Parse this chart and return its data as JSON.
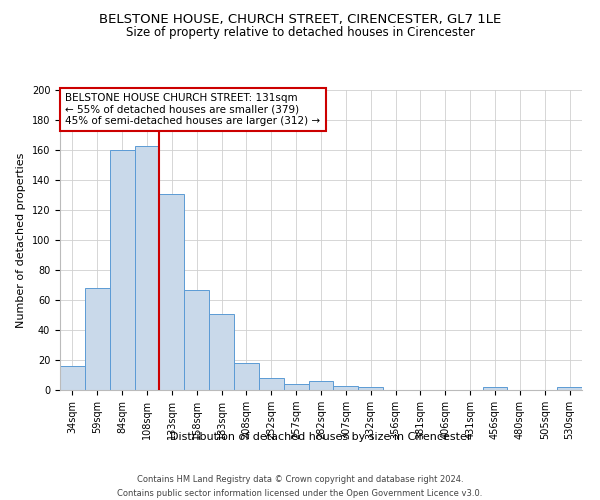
{
  "title": "BELSTONE HOUSE, CHURCH STREET, CIRENCESTER, GL7 1LE",
  "subtitle": "Size of property relative to detached houses in Cirencester",
  "xlabel": "Distribution of detached houses by size in Cirencester",
  "ylabel": "Number of detached properties",
  "categories": [
    "34sqm",
    "59sqm",
    "84sqm",
    "108sqm",
    "133sqm",
    "158sqm",
    "183sqm",
    "208sqm",
    "232sqm",
    "257sqm",
    "282sqm",
    "307sqm",
    "332sqm",
    "356sqm",
    "381sqm",
    "406sqm",
    "431sqm",
    "456sqm",
    "480sqm",
    "505sqm",
    "530sqm"
  ],
  "values": [
    16,
    68,
    160,
    163,
    131,
    67,
    51,
    18,
    8,
    4,
    6,
    3,
    2,
    0,
    0,
    0,
    0,
    2,
    0,
    0,
    2
  ],
  "bar_color": "#c9d9ea",
  "bar_edge_color": "#5b9bd5",
  "red_line_index": 4,
  "annotation_line1": "BELSTONE HOUSE CHURCH STREET: 131sqm",
  "annotation_line2": "← 55% of detached houses are smaller (379)",
  "annotation_line3": "45% of semi-detached houses are larger (312) →",
  "annotation_box_color": "#ffffff",
  "annotation_box_edge": "#cc0000",
  "red_line_color": "#cc0000",
  "ylim": [
    0,
    200
  ],
  "yticks": [
    0,
    20,
    40,
    60,
    80,
    100,
    120,
    140,
    160,
    180,
    200
  ],
  "footer_line1": "Contains HM Land Registry data © Crown copyright and database right 2024.",
  "footer_line2": "Contains public sector information licensed under the Open Government Licence v3.0.",
  "title_fontsize": 9.5,
  "subtitle_fontsize": 8.5,
  "tick_fontsize": 7,
  "ylabel_fontsize": 8,
  "xlabel_fontsize": 8,
  "annotation_fontsize": 7.5,
  "footer_fontsize": 6
}
